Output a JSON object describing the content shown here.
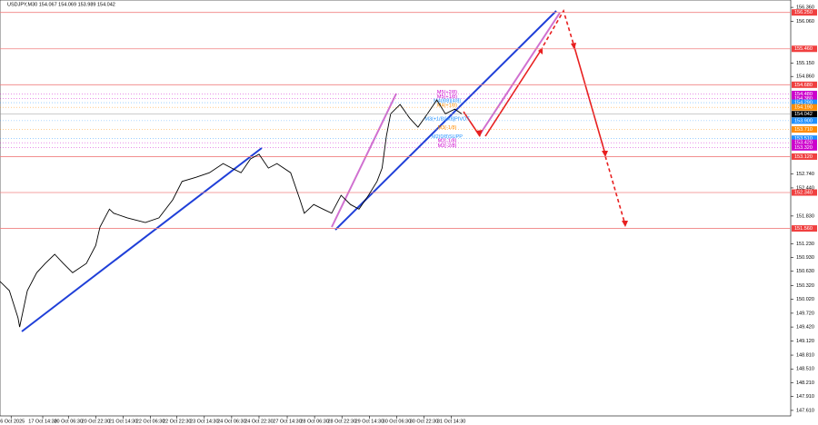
{
  "chart_data": {
    "type": "line",
    "title": "USDJPY,M30  154.067 154.069 153.989 154.042",
    "x": [
      0,
      11,
      21,
      23,
      32,
      43,
      53,
      64,
      74,
      85,
      101,
      112,
      117,
      128,
      133,
      149,
      170,
      186,
      202,
      213,
      229,
      245,
      261,
      271,
      282,
      293,
      303,
      314,
      324,
      340,
      351,
      356,
      367,
      378,
      388,
      399,
      410,
      420,
      431,
      441,
      447,
      452,
      457,
      468,
      479,
      489,
      500,
      511,
      521,
      532,
      540
    ],
    "series": [
      {
        "name": "USDJPY",
        "color": "#000000",
        "values": [
          150.41,
          150.21,
          149.62,
          149.42,
          150.21,
          150.6,
          150.8,
          151.0,
          150.8,
          150.6,
          150.8,
          151.19,
          151.59,
          151.98,
          151.89,
          151.79,
          151.69,
          151.79,
          152.18,
          152.58,
          152.67,
          152.77,
          152.97,
          152.87,
          152.77,
          153.07,
          153.17,
          152.87,
          152.97,
          152.77,
          152.18,
          151.89,
          152.08,
          151.98,
          151.89,
          152.28,
          152.08,
          151.98,
          152.28,
          152.58,
          152.87,
          153.56,
          154.05,
          154.25,
          153.96,
          153.76,
          154.05,
          154.35,
          154.05,
          154.15,
          154.05
        ]
      }
    ],
    "current_price": {
      "value": 154.042,
      "label": "154.042"
    },
    "xlim": [
      0,
      925
    ],
    "xticks": [
      {
        "value": 13,
        "label": "16 Oct 2025"
      },
      {
        "value": 50,
        "label": "17 Oct 14:30"
      },
      {
        "value": 80,
        "label": "20 Oct 06:30"
      },
      {
        "value": 112,
        "label": "20 Oct 22:30"
      },
      {
        "value": 144,
        "label": "21 Oct 14:30"
      },
      {
        "value": 176,
        "label": "22 Oct 06:30"
      },
      {
        "value": 207,
        "label": "22 Oct 22:30"
      },
      {
        "value": 239,
        "label": "23 Oct 14:30"
      },
      {
        "value": 271,
        "label": "24 Oct 06:30"
      },
      {
        "value": 303,
        "label": "24 Oct 22:30"
      },
      {
        "value": 336,
        "label": "27 Oct 14:30"
      },
      {
        "value": 368,
        "label": "28 Oct 06:30"
      },
      {
        "value": 400,
        "label": "28 Oct 22:30"
      },
      {
        "value": 432,
        "label": "29 Oct 14:30"
      },
      {
        "value": 464,
        "label": "30 Oct 06:30"
      },
      {
        "value": 496,
        "label": "30 Oct 22:30"
      },
      {
        "value": 528,
        "label": "31 Oct 14:30"
      }
    ],
    "ylim": [
      147.49,
      156.52
    ],
    "yticks": [
      {
        "value": 147.61,
        "label": "147.610"
      },
      {
        "value": 147.91,
        "label": "147.910"
      },
      {
        "value": 148.21,
        "label": "148.210"
      },
      {
        "value": 148.51,
        "label": "148.510"
      },
      {
        "value": 148.81,
        "label": "148.810"
      },
      {
        "value": 149.12,
        "label": "149.120"
      },
      {
        "value": 149.42,
        "label": "149.420"
      },
      {
        "value": 149.72,
        "label": "149.720"
      },
      {
        "value": 150.02,
        "label": "150.020"
      },
      {
        "value": 150.32,
        "label": "150.320"
      },
      {
        "value": 150.63,
        "label": "150.630"
      },
      {
        "value": 150.93,
        "label": "150.930"
      },
      {
        "value": 151.23,
        "label": "151.230"
      },
      {
        "value": 151.83,
        "label": "151.830"
      },
      {
        "value": 152.44,
        "label": "152.440"
      },
      {
        "value": 152.74,
        "label": "152.740"
      },
      {
        "value": 154.86,
        "label": "154.860"
      },
      {
        "value": 155.15,
        "label": "155.150"
      },
      {
        "value": 156.06,
        "label": "156.060"
      },
      {
        "value": 156.36,
        "label": "156.360"
      }
    ],
    "levels": [
      {
        "value": 156.25,
        "label": "156.250"
      },
      {
        "value": 155.46,
        "label": "155.460"
      },
      {
        "value": 154.68,
        "label": "154.680"
      },
      {
        "value": 153.12,
        "label": "153.120"
      },
      {
        "value": 152.34,
        "label": "152.340"
      },
      {
        "value": 151.56,
        "label": "151.560"
      }
    ],
    "pivot_levels": [
      {
        "value": 154.48,
        "label": "154.480",
        "name": "M5(+2/8)",
        "color": "#cc00cc"
      },
      {
        "value": 154.38,
        "label": "154.380",
        "name": "M5(+1/8)",
        "color": "#cc00cc"
      },
      {
        "value": 154.29,
        "label": "154.290",
        "name": "M4(8/8)[4/8]",
        "color": "#1e90ff"
      },
      {
        "value": 154.19,
        "label": "154.190",
        "name": "M4(+1/8)",
        "color": "#ff8c00"
      },
      {
        "value": 153.9,
        "label": "153.900",
        "name": "M3(+1/8)[4/8]PIVOT",
        "color": "#1e90ff"
      },
      {
        "value": 153.71,
        "label": "153.710",
        "name": "M3(-1/8)",
        "color": "#ff8c00"
      },
      {
        "value": 153.51,
        "label": "153.510",
        "name": "M2(0/8)SUPP",
        "color": "#1e90ff"
      },
      {
        "value": 153.42,
        "label": "153.420",
        "name": "M2(-1/8)",
        "color": "#cc00cc"
      },
      {
        "value": 153.32,
        "label": "153.320",
        "name": "M2(-2/8)",
        "color": "#cc00cc"
      }
    ]
  }
}
